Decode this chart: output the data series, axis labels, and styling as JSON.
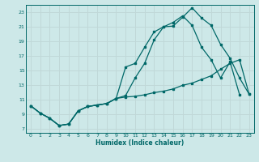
{
  "xlabel": "Humidex (Indice chaleur)",
  "bg_color": "#cde8e8",
  "grid_color": "#c0d8d8",
  "line_color": "#006868",
  "spine_color": "#006868",
  "xlim": [
    -0.5,
    23.5
  ],
  "ylim": [
    6.5,
    24.0
  ],
  "yticks": [
    7,
    9,
    11,
    13,
    15,
    17,
    19,
    21,
    23
  ],
  "xticks": [
    0,
    1,
    2,
    3,
    4,
    5,
    6,
    7,
    8,
    9,
    10,
    11,
    12,
    13,
    14,
    15,
    16,
    17,
    18,
    19,
    20,
    21,
    22,
    23
  ],
  "line1_x": [
    0,
    1,
    2,
    3,
    4,
    5,
    6,
    7,
    8,
    9,
    10,
    11,
    12,
    13,
    14,
    15,
    16,
    17,
    18,
    19,
    20,
    21,
    22,
    23
  ],
  "line1_y": [
    10.2,
    9.2,
    8.5,
    7.5,
    7.7,
    9.5,
    10.1,
    10.3,
    10.5,
    11.2,
    11.6,
    14.0,
    16.0,
    19.2,
    21.0,
    21.1,
    22.3,
    23.6,
    22.2,
    21.2,
    18.6,
    16.7,
    14.0,
    11.8
  ],
  "line2_x": [
    0,
    1,
    2,
    3,
    4,
    5,
    6,
    7,
    8,
    9,
    10,
    11,
    12,
    13,
    14,
    15,
    16,
    17,
    18,
    19,
    20,
    21,
    22
  ],
  "line2_y": [
    10.2,
    9.2,
    8.5,
    7.5,
    7.7,
    9.5,
    10.1,
    10.3,
    10.5,
    11.2,
    15.5,
    16.0,
    18.2,
    20.3,
    21.0,
    21.6,
    22.5,
    21.2,
    18.2,
    16.5,
    14.0,
    16.2,
    11.7
  ],
  "line3_x": [
    0,
    1,
    2,
    3,
    4,
    5,
    6,
    7,
    8,
    9,
    10,
    11,
    12,
    13,
    14,
    15,
    16,
    17,
    18,
    19,
    20,
    21,
    22,
    23
  ],
  "line3_y": [
    10.2,
    9.2,
    8.5,
    7.5,
    7.7,
    9.5,
    10.1,
    10.3,
    10.5,
    11.2,
    11.4,
    11.5,
    11.7,
    12.0,
    12.2,
    12.5,
    13.0,
    13.3,
    13.8,
    14.3,
    15.2,
    16.0,
    16.5,
    11.8
  ]
}
